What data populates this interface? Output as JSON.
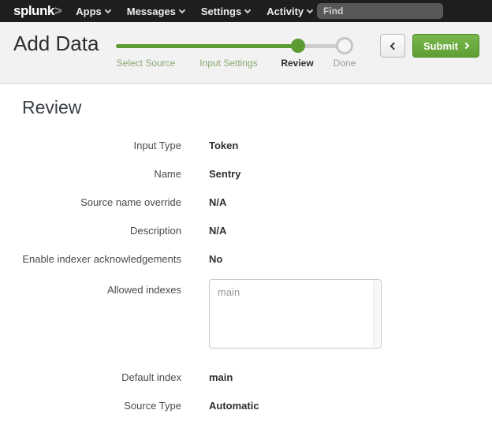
{
  "navbar": {
    "logo_text": "splunk",
    "logo_mark": ">",
    "items": [
      {
        "label": "Apps"
      },
      {
        "label": "Messages"
      },
      {
        "label": "Settings"
      },
      {
        "label": "Activity"
      }
    ],
    "find_placeholder": "Find"
  },
  "header": {
    "title": "Add Data",
    "steps": [
      {
        "label": "Select Source",
        "state": "complete"
      },
      {
        "label": "Input Settings",
        "state": "complete"
      },
      {
        "label": "Review",
        "state": "current"
      },
      {
        "label": "Done",
        "state": "upcoming"
      }
    ],
    "submit_label": "Submit"
  },
  "review": {
    "heading": "Review",
    "fields": [
      {
        "label": "Input Type",
        "value": "Token"
      },
      {
        "label": "Name",
        "value": "Sentry"
      },
      {
        "label": "Source name override",
        "value": "N/A"
      },
      {
        "label": "Description",
        "value": "N/A"
      },
      {
        "label": "Enable indexer acknowledgements",
        "value": "No"
      },
      {
        "label": "Allowed indexes",
        "value": "main"
      },
      {
        "label": "Default index",
        "value": "main"
      },
      {
        "label": "Source Type",
        "value": "Automatic"
      }
    ]
  },
  "icons": {
    "nav_caret": "chevron-down",
    "back": "chevron-left",
    "submit": "chevron-right"
  },
  "colors": {
    "accent_green": "#5c9a32",
    "step_label_green": "#8ca871",
    "navbar_bg": "#1e1e1e",
    "header_bg": "#f2f2f2",
    "submit_gradient_top": "#79b84b",
    "submit_gradient_bottom": "#5f9e33"
  }
}
